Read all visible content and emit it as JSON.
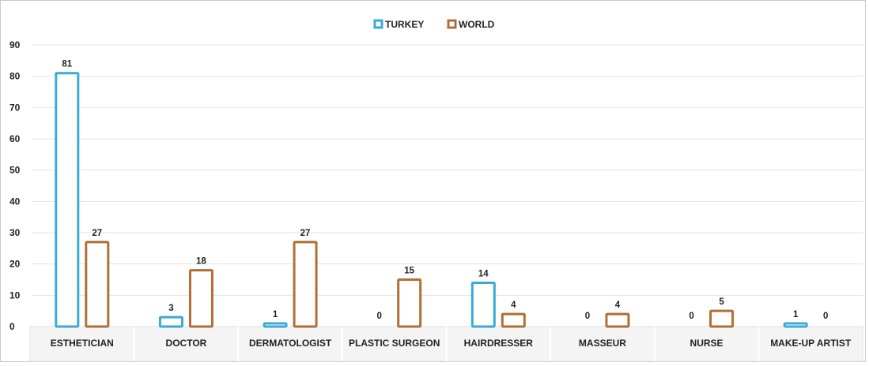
{
  "chart_data": {
    "type": "bar",
    "title": "",
    "xlabel": "",
    "ylabel": "",
    "ylim": [
      0,
      90
    ],
    "yticks": [
      0,
      10,
      20,
      30,
      40,
      50,
      60,
      70,
      80,
      90
    ],
    "grid": true,
    "legend_position": "top-center",
    "categories": [
      "ESTHETICIAN",
      "DOCTOR",
      "DERMATOLOGIST",
      "PLASTIC SURGEON",
      "HAIRDRESSER",
      "MASSEUR",
      "NURSE",
      "MAKE-UP ARTIST"
    ],
    "series": [
      {
        "name": "TURKEY",
        "color": "#3aabd2",
        "values": [
          81,
          3,
          1,
          0,
          14,
          0,
          0,
          1
        ]
      },
      {
        "name": "WORLD",
        "color": "#b06f35",
        "values": [
          27,
          18,
          27,
          15,
          4,
          4,
          5,
          0
        ]
      }
    ]
  }
}
